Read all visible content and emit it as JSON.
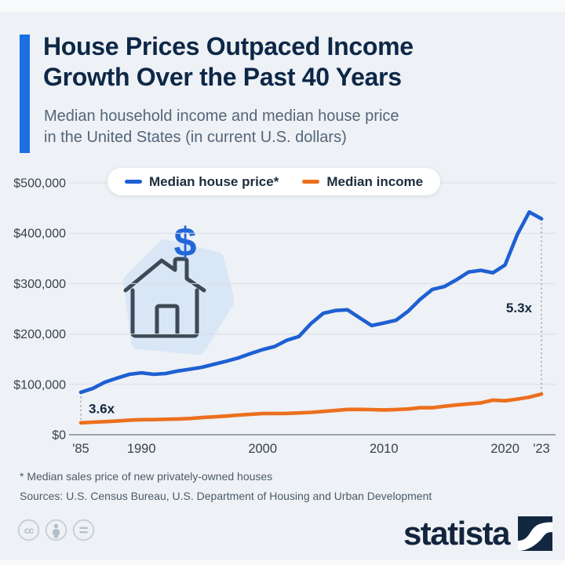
{
  "header": {
    "title_line1": "House Prices Outpaced Income",
    "title_line2": "Growth Over the Past 40 Years",
    "subtitle_line1": "Median household income and median house price",
    "subtitle_line2": "in the United States (in current U.S. dollars)",
    "accent_color": "#1a6fe3"
  },
  "legend": {
    "items": [
      {
        "label": "Median house price*",
        "color": "#1e5fd2"
      },
      {
        "label": "Median income",
        "color": "#ec6f1d"
      }
    ]
  },
  "chart_data": {
    "type": "line",
    "title": "House Prices Outpaced Income Growth Over the Past 40 Years",
    "subtitle": "Median household income and median house price in the United States (in current U.S. dollars)",
    "x": [
      1985,
      1986,
      1987,
      1988,
      1989,
      1990,
      1991,
      1992,
      1993,
      1994,
      1995,
      1996,
      1997,
      1998,
      1999,
      2000,
      2001,
      2002,
      2003,
      2004,
      2005,
      2006,
      2007,
      2008,
      2009,
      2010,
      2011,
      2012,
      2013,
      2014,
      2015,
      2016,
      2017,
      2018,
      2019,
      2020,
      2021,
      2022,
      2023
    ],
    "series": [
      {
        "name": "Median house price*",
        "color": "#1e5fd2",
        "values": [
          84300,
          92000,
          104500,
          112500,
          120000,
          122900,
          120000,
          121500,
          126500,
          130000,
          133900,
          140000,
          146000,
          152500,
          161000,
          169000,
          175200,
          187600,
          195000,
          221000,
          240900,
          246500,
          247900,
          232100,
          216700,
          221800,
          227200,
          245200,
          268900,
          288500,
          294200,
          307800,
          323100,
          326400,
          321500,
          336900,
          397100,
          442000,
          428600
        ]
      },
      {
        "name": "Median income",
        "color": "#ec6f1d",
        "values": [
          23620,
          24900,
          26060,
          27230,
          28910,
          29940,
          30130,
          30640,
          31240,
          32260,
          34080,
          35490,
          37010,
          38890,
          40700,
          41990,
          42230,
          42410,
          43320,
          44330,
          46330,
          48200,
          50230,
          50300,
          49780,
          49280,
          50050,
          51020,
          53590,
          53660,
          56520,
          59040,
          61140,
          63180,
          68700,
          67520,
          70780,
          74580,
          80610
        ]
      }
    ],
    "ylim": [
      0,
      500000
    ],
    "y_ticks": [
      {
        "value": 0,
        "label": "$0"
      },
      {
        "value": 100000,
        "label": "$100,000"
      },
      {
        "value": 200000,
        "label": "$200,000"
      },
      {
        "value": 300000,
        "label": "$300,000"
      },
      {
        "value": 400000,
        "label": "$400,000"
      },
      {
        "value": 500000,
        "label": "$500,000"
      }
    ],
    "x_ticks": [
      {
        "value": 1985,
        "label": "'85"
      },
      {
        "value": 1990,
        "label": "1990"
      },
      {
        "value": 2000,
        "label": "2000"
      },
      {
        "value": 2010,
        "label": "2010"
      },
      {
        "value": 2020,
        "label": "2020"
      },
      {
        "value": 2023,
        "label": "'23"
      }
    ],
    "annotations": [
      {
        "label": "3.6x",
        "year": 1985,
        "value": 52000,
        "dx": 10,
        "anchor": "start"
      },
      {
        "label": "5.3x",
        "year": 2023,
        "value": 252000,
        "dx": -12,
        "anchor": "end"
      }
    ],
    "connectors": [
      {
        "year": 1985
      },
      {
        "year": 2023
      }
    ],
    "grid": true,
    "legend_position": "top",
    "colors": {
      "grid": "#d9dee4",
      "axis": "#8e99a4",
      "connector": "#98a3ae"
    }
  },
  "footnotes": {
    "note": "* Median sales price of new privately-owned houses",
    "sources": "Sources: U.S. Census Bureau, U.S. Department of Housing and Urban Development"
  },
  "branding": {
    "wordmark": "statista"
  },
  "license": {
    "icons": [
      "cc",
      "attribution",
      "no-derivatives"
    ]
  }
}
